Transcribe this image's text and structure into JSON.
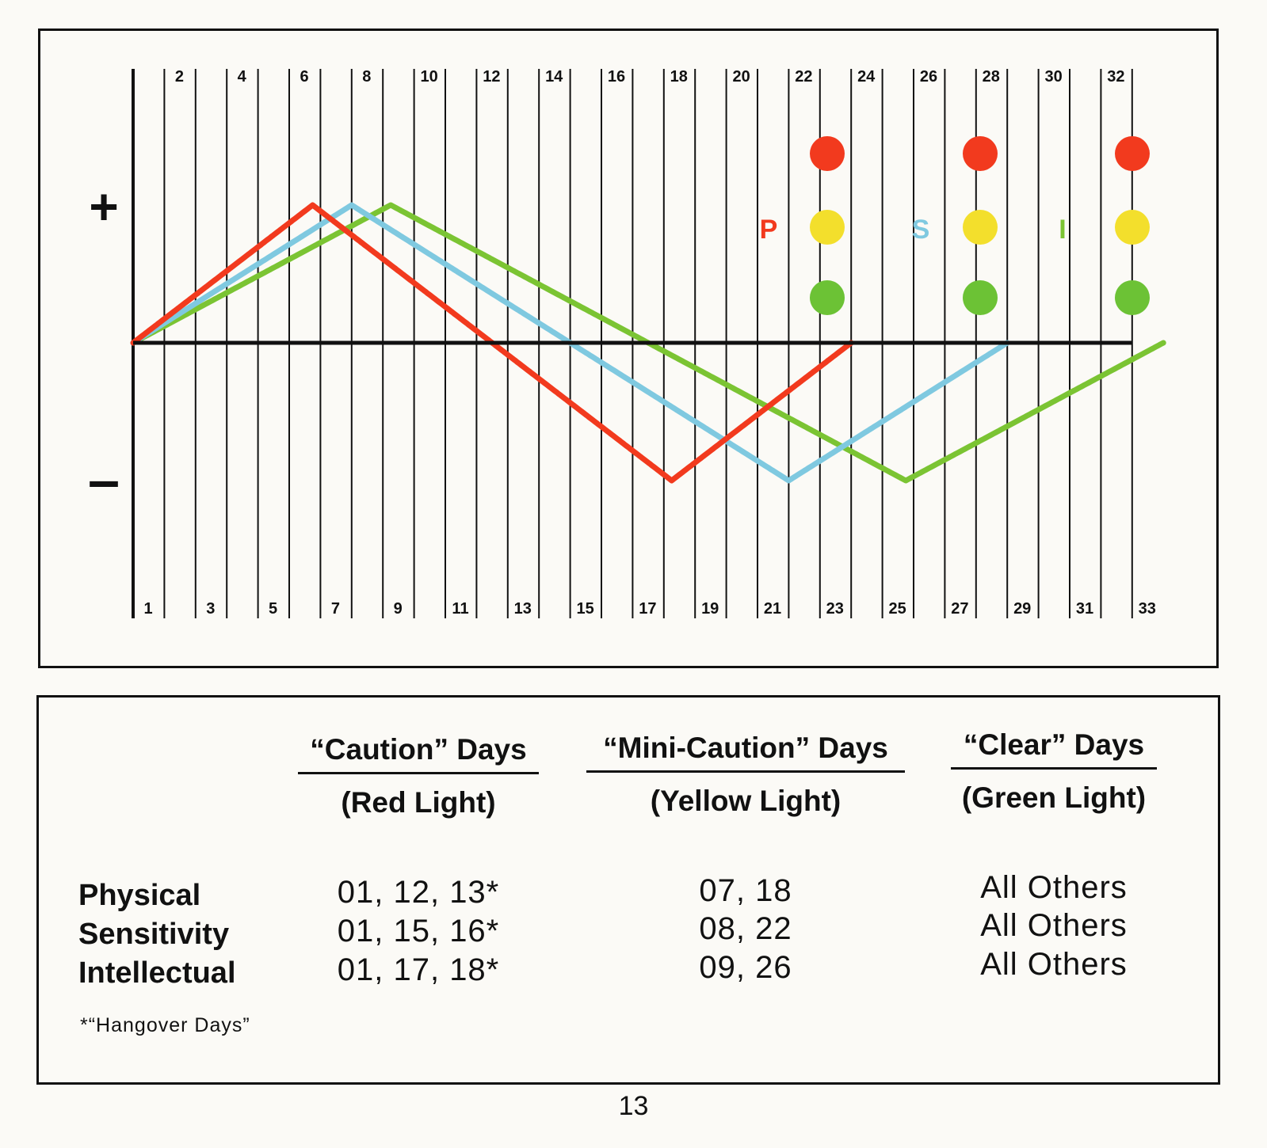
{
  "chart_data": {
    "type": "line",
    "x": [
      1,
      2,
      3,
      4,
      5,
      6,
      7,
      8,
      9,
      10,
      11,
      12,
      13,
      14,
      15,
      16,
      17,
      18,
      19,
      20,
      21,
      22,
      23,
      24,
      25,
      26,
      27,
      28,
      29,
      30,
      31,
      32,
      33
    ],
    "xlabels_top": [
      "2",
      "4",
      "6",
      "8",
      "10",
      "12",
      "14",
      "16",
      "18",
      "20",
      "22",
      "24",
      "26",
      "28",
      "30",
      "32"
    ],
    "xlabels_bottom": [
      "1",
      "3",
      "5",
      "7",
      "9",
      "11",
      "13",
      "15",
      "17",
      "19",
      "21",
      "23",
      "25",
      "27",
      "29",
      "31",
      "33"
    ],
    "ylim": [
      -1,
      1
    ],
    "y_plus_label": "+",
    "y_minus_label": "–",
    "series": [
      {
        "letter": "P",
        "color": "#f23a1e",
        "period_days": 23,
        "start_day": 1
      },
      {
        "letter": "S",
        "color": "#7fc9e0",
        "period_days": 28,
        "start_day": 1
      },
      {
        "letter": "I",
        "color": "#7bc433",
        "period_days": 33,
        "start_day": 1
      }
    ],
    "lights": [
      {
        "day": 24,
        "colors": [
          "#f23a1e",
          "#f3df2c",
          "#6cc235"
        ]
      },
      {
        "day": 29,
        "colors": [
          "#f23a1e",
          "#f3df2c",
          "#6cc235"
        ]
      },
      {
        "day": 34,
        "colors": [
          "#f23a1e",
          "#f3df2c",
          "#6cc235"
        ]
      }
    ]
  },
  "table": {
    "columns": [
      {
        "heading": "“Caution” Days",
        "sub": "(Red Light)"
      },
      {
        "heading": "“Mini-Caution” Days",
        "sub": "(Yellow Light)"
      },
      {
        "heading": "“Clear” Days",
        "sub": "(Green Light)"
      }
    ],
    "rows": [
      {
        "label": "Physical",
        "cells": [
          "01, 12, 13*",
          "07, 18",
          "All Others"
        ]
      },
      {
        "label": "Sensitivity",
        "cells": [
          "01, 15, 16*",
          "08, 22",
          "All Others"
        ]
      },
      {
        "label": "Intellectual",
        "cells": [
          "01, 17, 18*",
          "09, 26",
          "All Others"
        ]
      }
    ],
    "footnote": "*“Hangover Days”"
  },
  "page_number": "13"
}
